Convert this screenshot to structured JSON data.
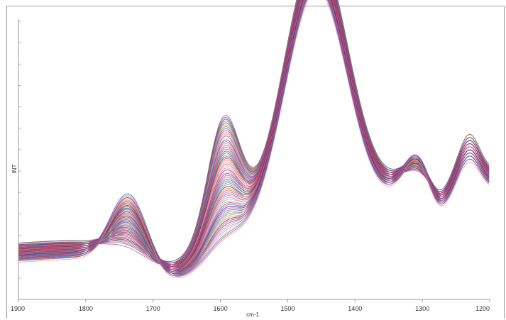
{
  "chart_data": {
    "type": "line",
    "title": "",
    "xlabel": "cm-1",
    "ylabel": "INT",
    "xlim": [
      1900,
      1200
    ],
    "x_reversed": true,
    "x_ticks": [
      1900,
      1800,
      1700,
      1600,
      1500,
      1400,
      1300,
      1200
    ],
    "x_tick_labels": [
      "1900",
      "1800",
      "1700",
      "1600",
      "1500",
      "1400",
      "1300",
      "1200"
    ],
    "y_tick_count": 14,
    "ylim": [
      0,
      1
    ],
    "grid": false,
    "legend": "none",
    "series_count": 80,
    "band_positions": {
      "band_1735": 1735,
      "band_1595": 1595,
      "band_1457": 1457,
      "band_1310": 1310,
      "band_1230": 1230
    },
    "series_envelope": {
      "first": {
        "base_1900": 0.23,
        "band_1735": 0.04,
        "band_1595": 0.43,
        "band_1457": 0.98,
        "band_1310": 0.04,
        "band_1230": 0.13
      },
      "last": {
        "base_1900": 0.17,
        "band_1735": 0.27,
        "band_1595": 0.05,
        "band_1457": 0.91,
        "band_1310": 0.13,
        "band_1230": 0.11
      }
    },
    "palette": [
      "#e0153a",
      "#c2185b",
      "#6a1b9a",
      "#283593",
      "#1565c0",
      "#00838f",
      "#2e7d32",
      "#9e9d24",
      "#ef6c00",
      "#ad1457",
      "#7b1fa2",
      "#d81b60",
      "#f06292",
      "#ba68c8",
      "#9575cd",
      "#ffb74d",
      "#4db6ac",
      "#e57373",
      "#8e24aa",
      "#3949ab"
    ]
  }
}
